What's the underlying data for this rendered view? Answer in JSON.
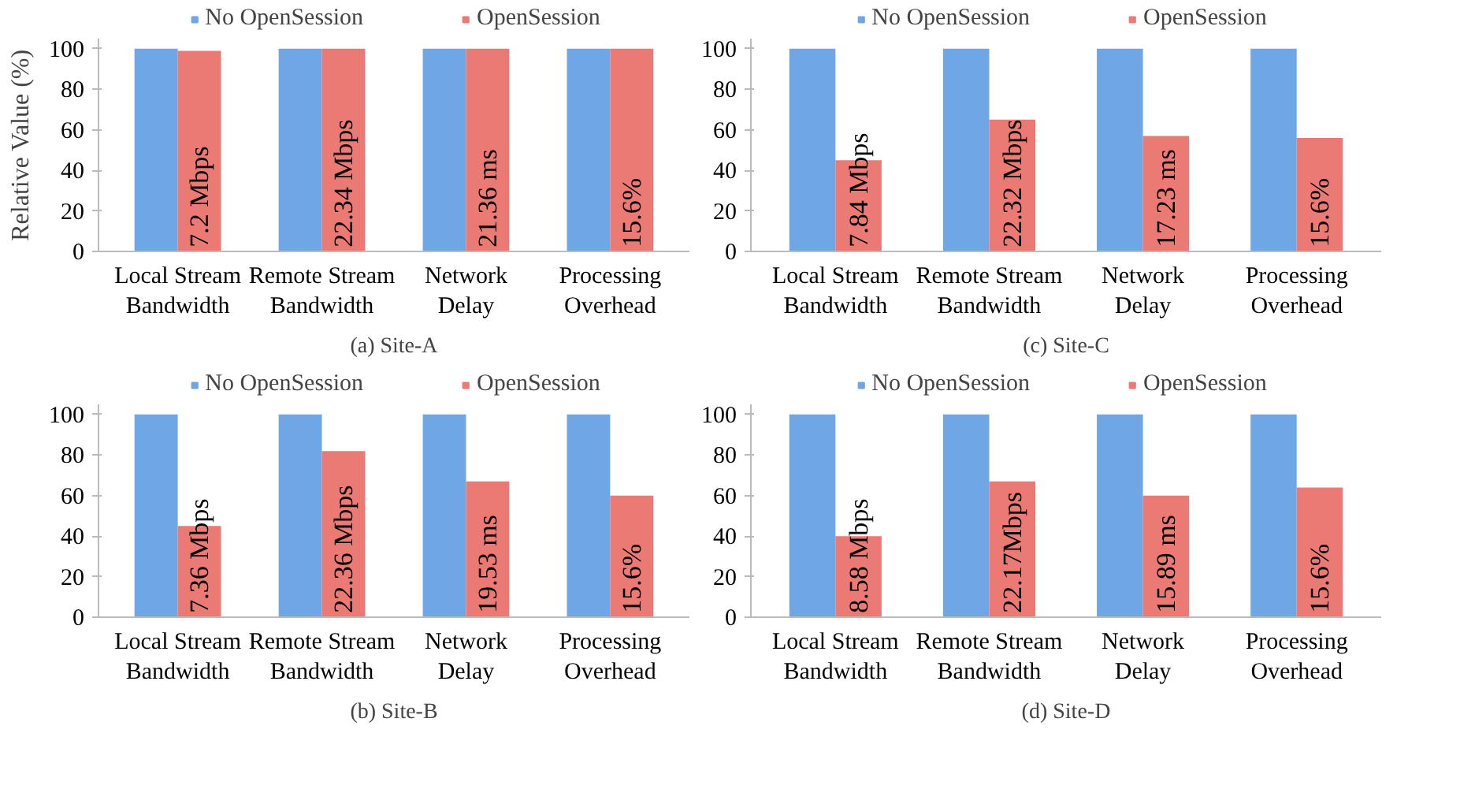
{
  "chart_data": [
    {
      "type": "bar",
      "title": "(a) Site-A",
      "ylabel": "Relative Value (%)",
      "categories": [
        "Local Stream Bandwidth",
        "Remote Stream Bandwidth",
        "Network Delay",
        "Processing Overhead"
      ],
      "ylim": [
        0,
        105
      ],
      "yticks": [
        0,
        20,
        40,
        60,
        80,
        100
      ],
      "grid": false,
      "legend": "top",
      "series": [
        {
          "name": "No OpenSession",
          "color": "#6fa6e6",
          "values": [
            100,
            100,
            100,
            100
          ]
        },
        {
          "name": "OpenSession",
          "color": "#eb7a74",
          "values": [
            99,
            100,
            100,
            100
          ]
        }
      ],
      "annotations": [
        "7.2 Mbps",
        "22.34 Mbps",
        "21.36 ms",
        "15.6%"
      ]
    },
    {
      "type": "bar",
      "title": "(c) Site-C",
      "categories": [
        "Local Stream Bandwidth",
        "Remote Stream Bandwidth",
        "Network Delay",
        "Processing Overhead"
      ],
      "ylim": [
        0,
        105
      ],
      "yticks": [
        0,
        20,
        40,
        60,
        80,
        100
      ],
      "grid": false,
      "legend": "top",
      "series": [
        {
          "name": "No OpenSession",
          "color": "#6fa6e6",
          "values": [
            100,
            100,
            100,
            100
          ]
        },
        {
          "name": "OpenSession",
          "color": "#eb7a74",
          "values": [
            45,
            65,
            57,
            56
          ]
        }
      ],
      "annotations": [
        "7.84 Mbps",
        "22.32 Mbps",
        "17.23 ms",
        "15.6%"
      ]
    },
    {
      "type": "bar",
      "title": "(b) Site-B",
      "categories": [
        "Local Stream Bandwidth",
        "Remote Stream Bandwidth",
        "Network Delay",
        "Processing Overhead"
      ],
      "ylim": [
        0,
        105
      ],
      "yticks": [
        0,
        20,
        40,
        60,
        80,
        100
      ],
      "grid": false,
      "legend": "top",
      "series": [
        {
          "name": "No OpenSession",
          "color": "#6fa6e6",
          "values": [
            100,
            100,
            100,
            100
          ]
        },
        {
          "name": "OpenSession",
          "color": "#eb7a74",
          "values": [
            45,
            82,
            67,
            60
          ]
        }
      ],
      "annotations": [
        "7.36 Mbps",
        "22.36 Mbps",
        "19.53 ms",
        "15.6%"
      ]
    },
    {
      "type": "bar",
      "title": "(d) Site-D",
      "categories": [
        "Local Stream Bandwidth",
        "Remote Stream Bandwidth",
        "Network Delay",
        "Processing Overhead"
      ],
      "ylim": [
        0,
        105
      ],
      "yticks": [
        0,
        20,
        40,
        60,
        80,
        100
      ],
      "grid": false,
      "legend": "top",
      "series": [
        {
          "name": "No OpenSession",
          "color": "#6fa6e6",
          "values": [
            100,
            100,
            100,
            100
          ]
        },
        {
          "name": "OpenSession",
          "color": "#eb7a74",
          "values": [
            40,
            67,
            60,
            64
          ]
        }
      ],
      "annotations": [
        "8.58 Mbps",
        "22.17Mbps",
        "15.89 ms",
        "15.6%"
      ]
    }
  ]
}
